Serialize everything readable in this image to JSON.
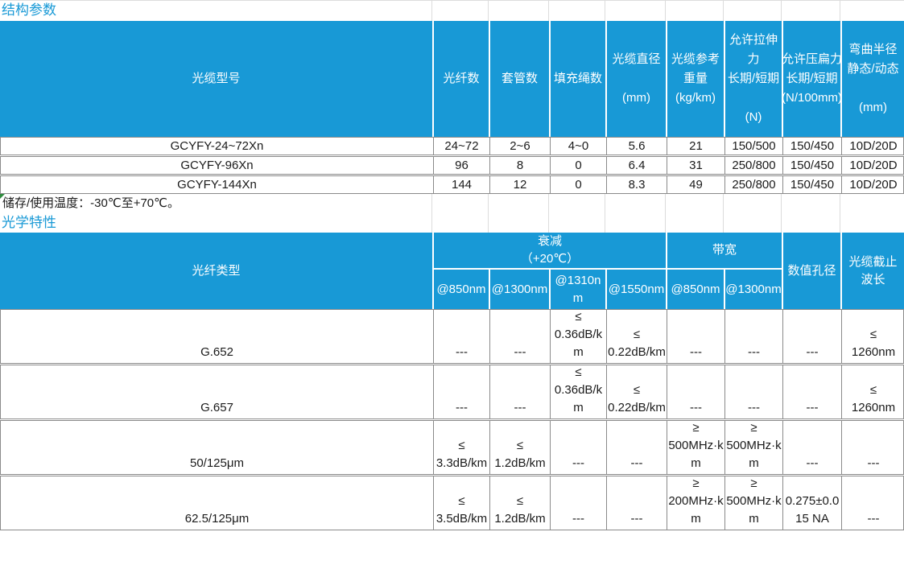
{
  "theme": {
    "accent_blue": "#1899d6",
    "header_text": "#ffffff",
    "border_gray": "#8a8a8a",
    "grid_light": "#dcdcdc",
    "text_dark": "#1a1a1a",
    "flag_green": "#2e8b3d"
  },
  "structural": {
    "title": "结构参数",
    "columns": [
      "光缆型号",
      "光纤数",
      "套管数",
      "填充绳数",
      "光缆直径\n\n(mm)",
      "光缆参考重量\n(kg/km)",
      "允许拉伸力\n长期/短期\n\n(N)",
      "允许压扁力\n长期/短期\n(N/100mm)",
      "弯曲半径\n静态/动态\n\n(mm)"
    ],
    "rows": [
      [
        "GCYFY-24~72Xn",
        "24~72",
        "2~6",
        "4~0",
        "5.6",
        "21",
        "150/500",
        "150/450",
        "10D/20D"
      ],
      [
        "GCYFY-96Xn",
        "96",
        "8",
        "0",
        "6.4",
        "31",
        "250/800",
        "150/450",
        "10D/20D"
      ],
      [
        "GCYFY-144Xn",
        "144",
        "12",
        "0",
        "8.3",
        "49",
        "250/800",
        "150/450",
        "10D/20D"
      ]
    ],
    "note": "储存/使用温度：-30℃至+70℃。"
  },
  "optical": {
    "title": "光学特性",
    "header": {
      "fiber_type": "光纤类型",
      "attenuation_group": "衰减\n（+20℃）",
      "bandwidth_group": "带宽",
      "attenuation_subs": [
        "@850nm",
        "@1300nm",
        "@1310nm",
        "@1550nm"
      ],
      "bandwidth_subs": [
        "@850nm",
        "@1300nm"
      ],
      "numerical_aperture": "数值孔径",
      "cutoff_wavelength": "光缆截止\n波长"
    },
    "rows": [
      [
        "G.652",
        "---",
        "---",
        "≤\n0.36dB/km",
        "≤\n0.22dB/km",
        "---",
        "---",
        "---",
        "≤\n1260nm"
      ],
      [
        "G.657",
        "---",
        "---",
        "≤\n0.36dB/km",
        "≤\n0.22dB/km",
        "---",
        "---",
        "---",
        "≤\n1260nm"
      ],
      [
        "50/125μm",
        "≤\n3.3dB/km",
        "≤\n1.2dB/km",
        "---",
        "---",
        "≥\n500MHz·km",
        "≥\n500MHz·km",
        "---",
        "---"
      ],
      [
        "62.5/125μm",
        "≤\n3.5dB/km",
        "≤\n1.2dB/km",
        "---",
        "---",
        "≥\n200MHz·km",
        "≥\n500MHz·km",
        "0.275±0.015 NA",
        "---"
      ]
    ]
  }
}
